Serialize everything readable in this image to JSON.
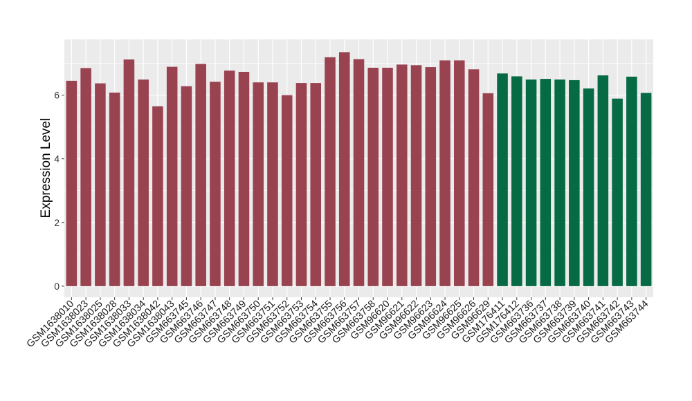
{
  "chart_data": {
    "type": "bar",
    "ylabel": "Expression Level",
    "xlabel": "",
    "ylim": [
      -0.35,
      7.75
    ],
    "yticks": [
      0,
      2,
      4,
      6
    ],
    "grid": true,
    "panel_background": "#ebebeb",
    "gridline_color": "#ffffff",
    "group_colors": [
      "#9a4350",
      "#066a45"
    ],
    "categories": [
      "GSM1638010",
      "GSM1638023",
      "GSM1638025",
      "GSM1638028",
      "GSM1638033",
      "GSM1638034",
      "GSM1638042",
      "GSM1638043",
      "GSM663745",
      "GSM663746",
      "GSM663747",
      "GSM663748",
      "GSM663749",
      "GSM663750",
      "GSM663751",
      "GSM663752",
      "GSM663753",
      "GSM663754",
      "GSM663755",
      "GSM663756",
      "GSM663757",
      "GSM663758",
      "GSM96620",
      "GSM96621",
      "GSM96622",
      "GSM96623",
      "GSM96624",
      "GSM96625",
      "GSM96626",
      "GSM96629",
      "GSM176411",
      "GSM176412",
      "GSM663736",
      "GSM663737",
      "GSM663738",
      "GSM663739",
      "GSM663740",
      "GSM663741",
      "GSM663742",
      "GSM663743",
      "GSM663744"
    ],
    "values": [
      6.45,
      6.85,
      6.37,
      6.08,
      7.12,
      6.49,
      5.65,
      6.89,
      6.28,
      6.98,
      6.42,
      6.77,
      6.73,
      6.4,
      6.4,
      6.0,
      6.38,
      6.38,
      7.19,
      7.35,
      7.13,
      6.86,
      6.86,
      6.96,
      6.94,
      6.88,
      7.09,
      7.09,
      6.81,
      6.06,
      6.68,
      6.59,
      6.49,
      6.51,
      6.49,
      6.47,
      6.21,
      6.62,
      5.89,
      6.58,
      6.07
    ],
    "groups": [
      0,
      0,
      0,
      0,
      0,
      0,
      0,
      0,
      0,
      0,
      0,
      0,
      0,
      0,
      0,
      0,
      0,
      0,
      0,
      0,
      0,
      0,
      0,
      0,
      0,
      0,
      0,
      0,
      0,
      0,
      1,
      1,
      1,
      1,
      1,
      1,
      1,
      1,
      1,
      1,
      1
    ]
  }
}
